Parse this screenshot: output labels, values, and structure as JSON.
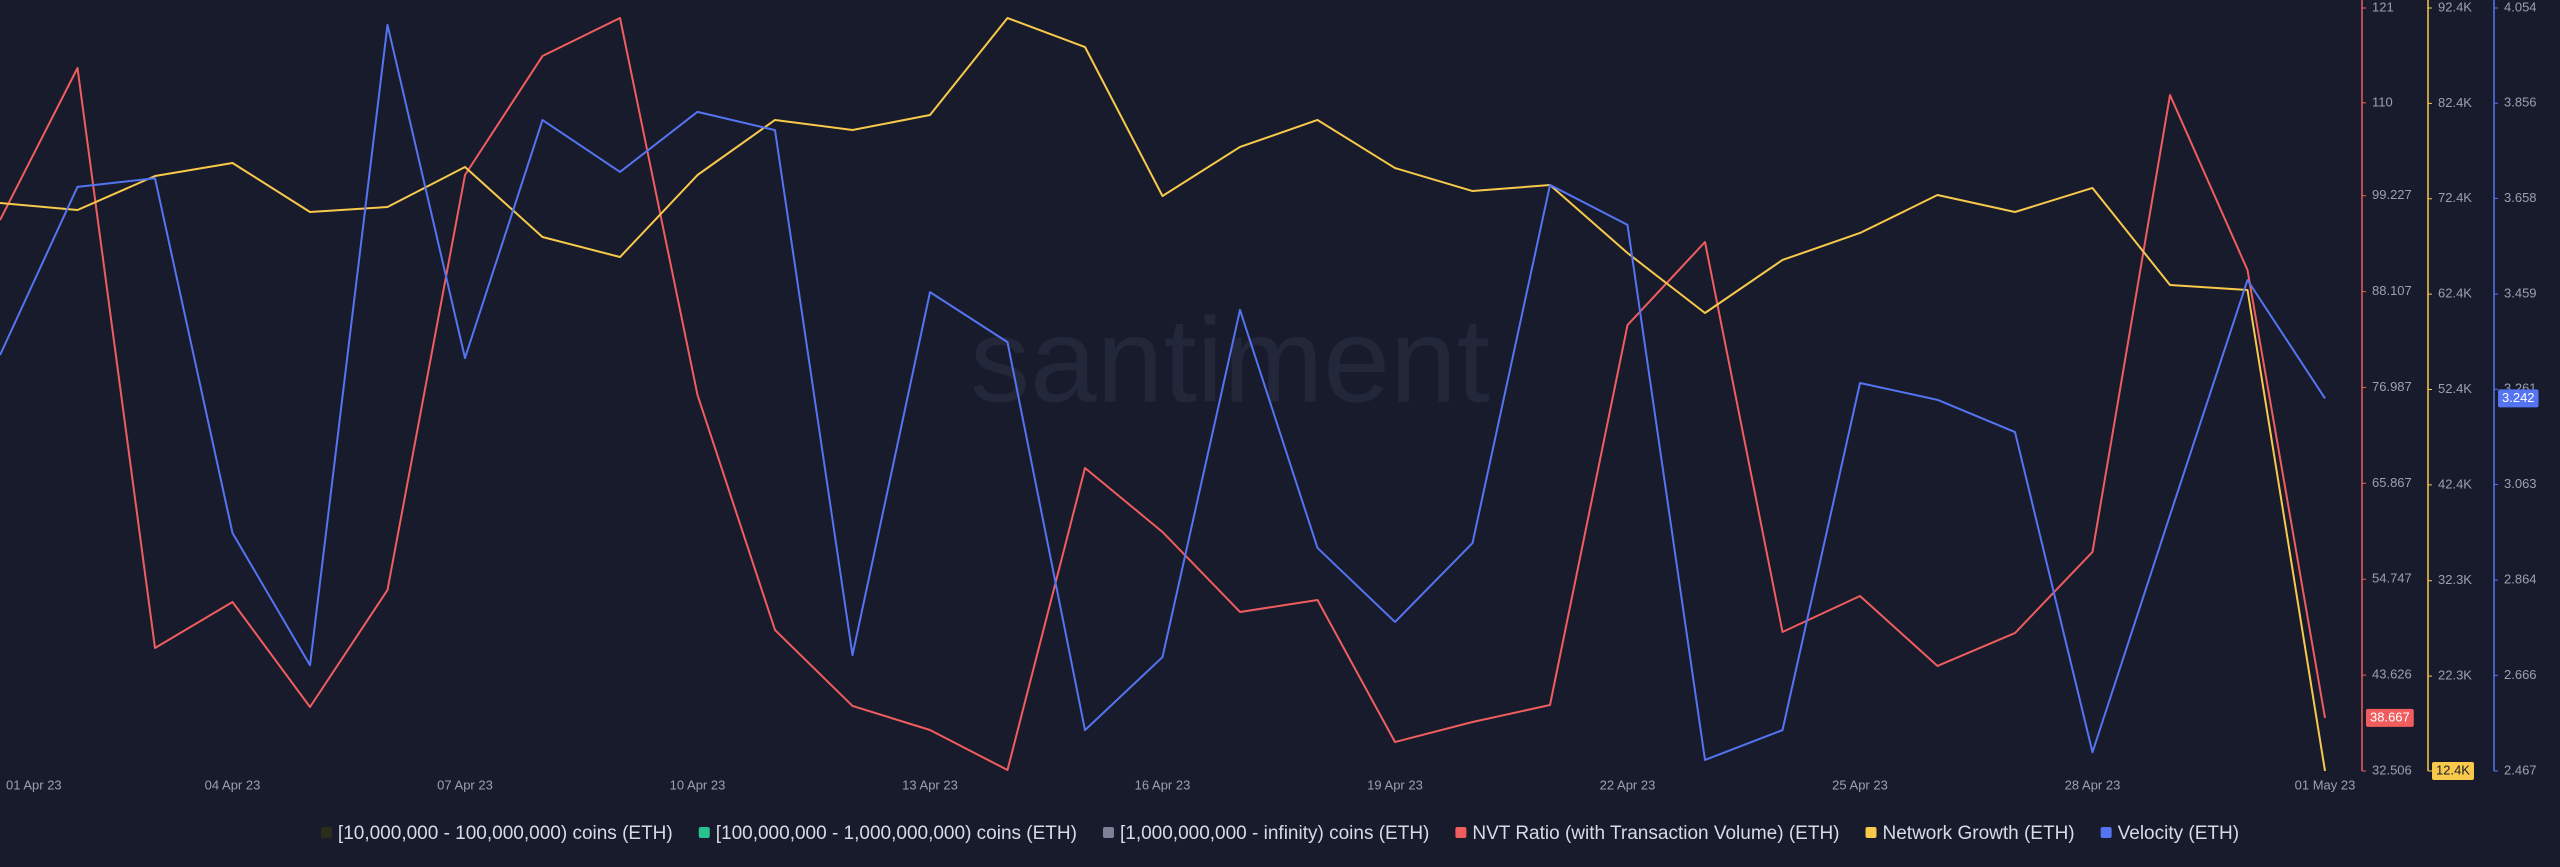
{
  "chart_data": {
    "type": "line",
    "watermark": "santiment",
    "categories": [
      "01 Apr 23",
      null,
      null,
      "04 Apr 23",
      null,
      null,
      "07 Apr 23",
      null,
      null,
      "10 Apr 23",
      null,
      null,
      "13 Apr 23",
      null,
      null,
      "16 Apr 23",
      null,
      null,
      "19 Apr 23",
      null,
      null,
      "22 Apr 23",
      null,
      null,
      "25 Apr 23",
      null,
      null,
      "28 Apr 23",
      null,
      null,
      "01 May 23"
    ],
    "ylim": [
      32.506,
      121
    ],
    "yticks": [
      121,
      110,
      99.227,
      88.107,
      76.987,
      65.867,
      54.747,
      43.626,
      32.506
    ],
    "y2lim": [
      12400,
      92400
    ],
    "y2ticks": [
      {
        "value": 92400,
        "label": "92.4K"
      },
      {
        "value": 82400,
        "label": "82.4K"
      },
      {
        "value": 72400,
        "label": "72.4K"
      },
      {
        "value": 62400,
        "label": "62.4K"
      },
      {
        "value": 52400,
        "label": "52.4K"
      },
      {
        "value": 42400,
        "label": "42.4K"
      },
      {
        "value": 32350,
        "label": "32.3K"
      },
      {
        "value": 22350,
        "label": "22.3K"
      },
      {
        "value": 12400,
        "label": "12.4K"
      }
    ],
    "y3lim": [
      2.467,
      4.054
    ],
    "y3ticks": [
      4.054,
      3.856,
      3.658,
      3.459,
      3.261,
      3.063,
      2.864,
      2.666,
      2.467
    ],
    "series": [
      {
        "name": "[10,000,000 - 100,000,000) coins (ETH)",
        "color": "#2a2d1c",
        "values": [
          null,
          null,
          null,
          null,
          null,
          null,
          null,
          null,
          null,
          null,
          null,
          null,
          null,
          null,
          null,
          null,
          null,
          null,
          null,
          null,
          null,
          null,
          null,
          null,
          null,
          null,
          null,
          null,
          null,
          null,
          null
        ]
      },
      {
        "name": "[100,000,000 - 1,000,000,000) coins (ETH)",
        "color": "#26c28f",
        "values": [
          null,
          null,
          null,
          null,
          null,
          null,
          null,
          null,
          null,
          null,
          null,
          null,
          null,
          null,
          null,
          null,
          null,
          null,
          null,
          null,
          null,
          null,
          null,
          null,
          null,
          null,
          null,
          null,
          null,
          null,
          null
        ]
      },
      {
        "name": "[1,000,000,000 - infinity) coins (ETH)",
        "color": "#7c8198",
        "values": [
          null,
          null,
          null,
          null,
          null,
          null,
          null,
          null,
          null,
          null,
          null,
          null,
          null,
          null,
          null,
          null,
          null,
          null,
          null,
          null,
          null,
          null,
          null,
          null,
          null,
          null,
          null,
          null,
          null,
          null,
          null
        ]
      },
      {
        "name": "NVT Ratio (with Transaction Volume) (ETH)",
        "color": "#f05d5e",
        "axis": "y",
        "last_label": "38.667",
        "values": [
          96.41,
          114.04,
          46.77,
          52.11,
          39.93,
          53.5,
          101.63,
          115.43,
          119.84,
          76.12,
          48.86,
          40.05,
          37.26,
          32.62,
          67.65,
          60.23,
          50.95,
          52.34,
          35.87,
          38.19,
          40.16,
          84.23,
          93.86,
          48.63,
          52.8,
          44.69,
          48.51,
          57.91,
          110.91,
          90.61,
          38.667
        ]
      },
      {
        "name": "Network Growth (ETH)",
        "color": "#f8c94b",
        "axis": "y2",
        "last_label": "12.4K",
        "values": [
          71950,
          71220,
          74785,
          76150,
          71010,
          71535,
          75730,
          68390,
          66290,
          74890,
          80660,
          79610,
          81180,
          91350,
          88310,
          72690,
          77830,
          80660,
          75620,
          73210,
          73840,
          66710,
          60420,
          65980,
          68810,
          72790,
          71010,
          73530,
          63360,
          62830,
          12400
        ]
      },
      {
        "name": "Velocity (ETH)",
        "color": "#5474f2",
        "axis": "y3",
        "last_label": "3.242",
        "values": [
          3.332,
          3.682,
          3.7,
          2.962,
          2.687,
          4.019,
          3.326,
          3.821,
          3.713,
          3.838,
          3.8,
          2.708,
          3.463,
          3.359,
          2.552,
          2.704,
          3.426,
          2.931,
          2.777,
          2.941,
          3.686,
          3.603,
          2.49,
          2.552,
          3.274,
          3.239,
          3.172,
          2.506,
          2.999,
          3.488,
          3.242
        ]
      }
    ]
  }
}
